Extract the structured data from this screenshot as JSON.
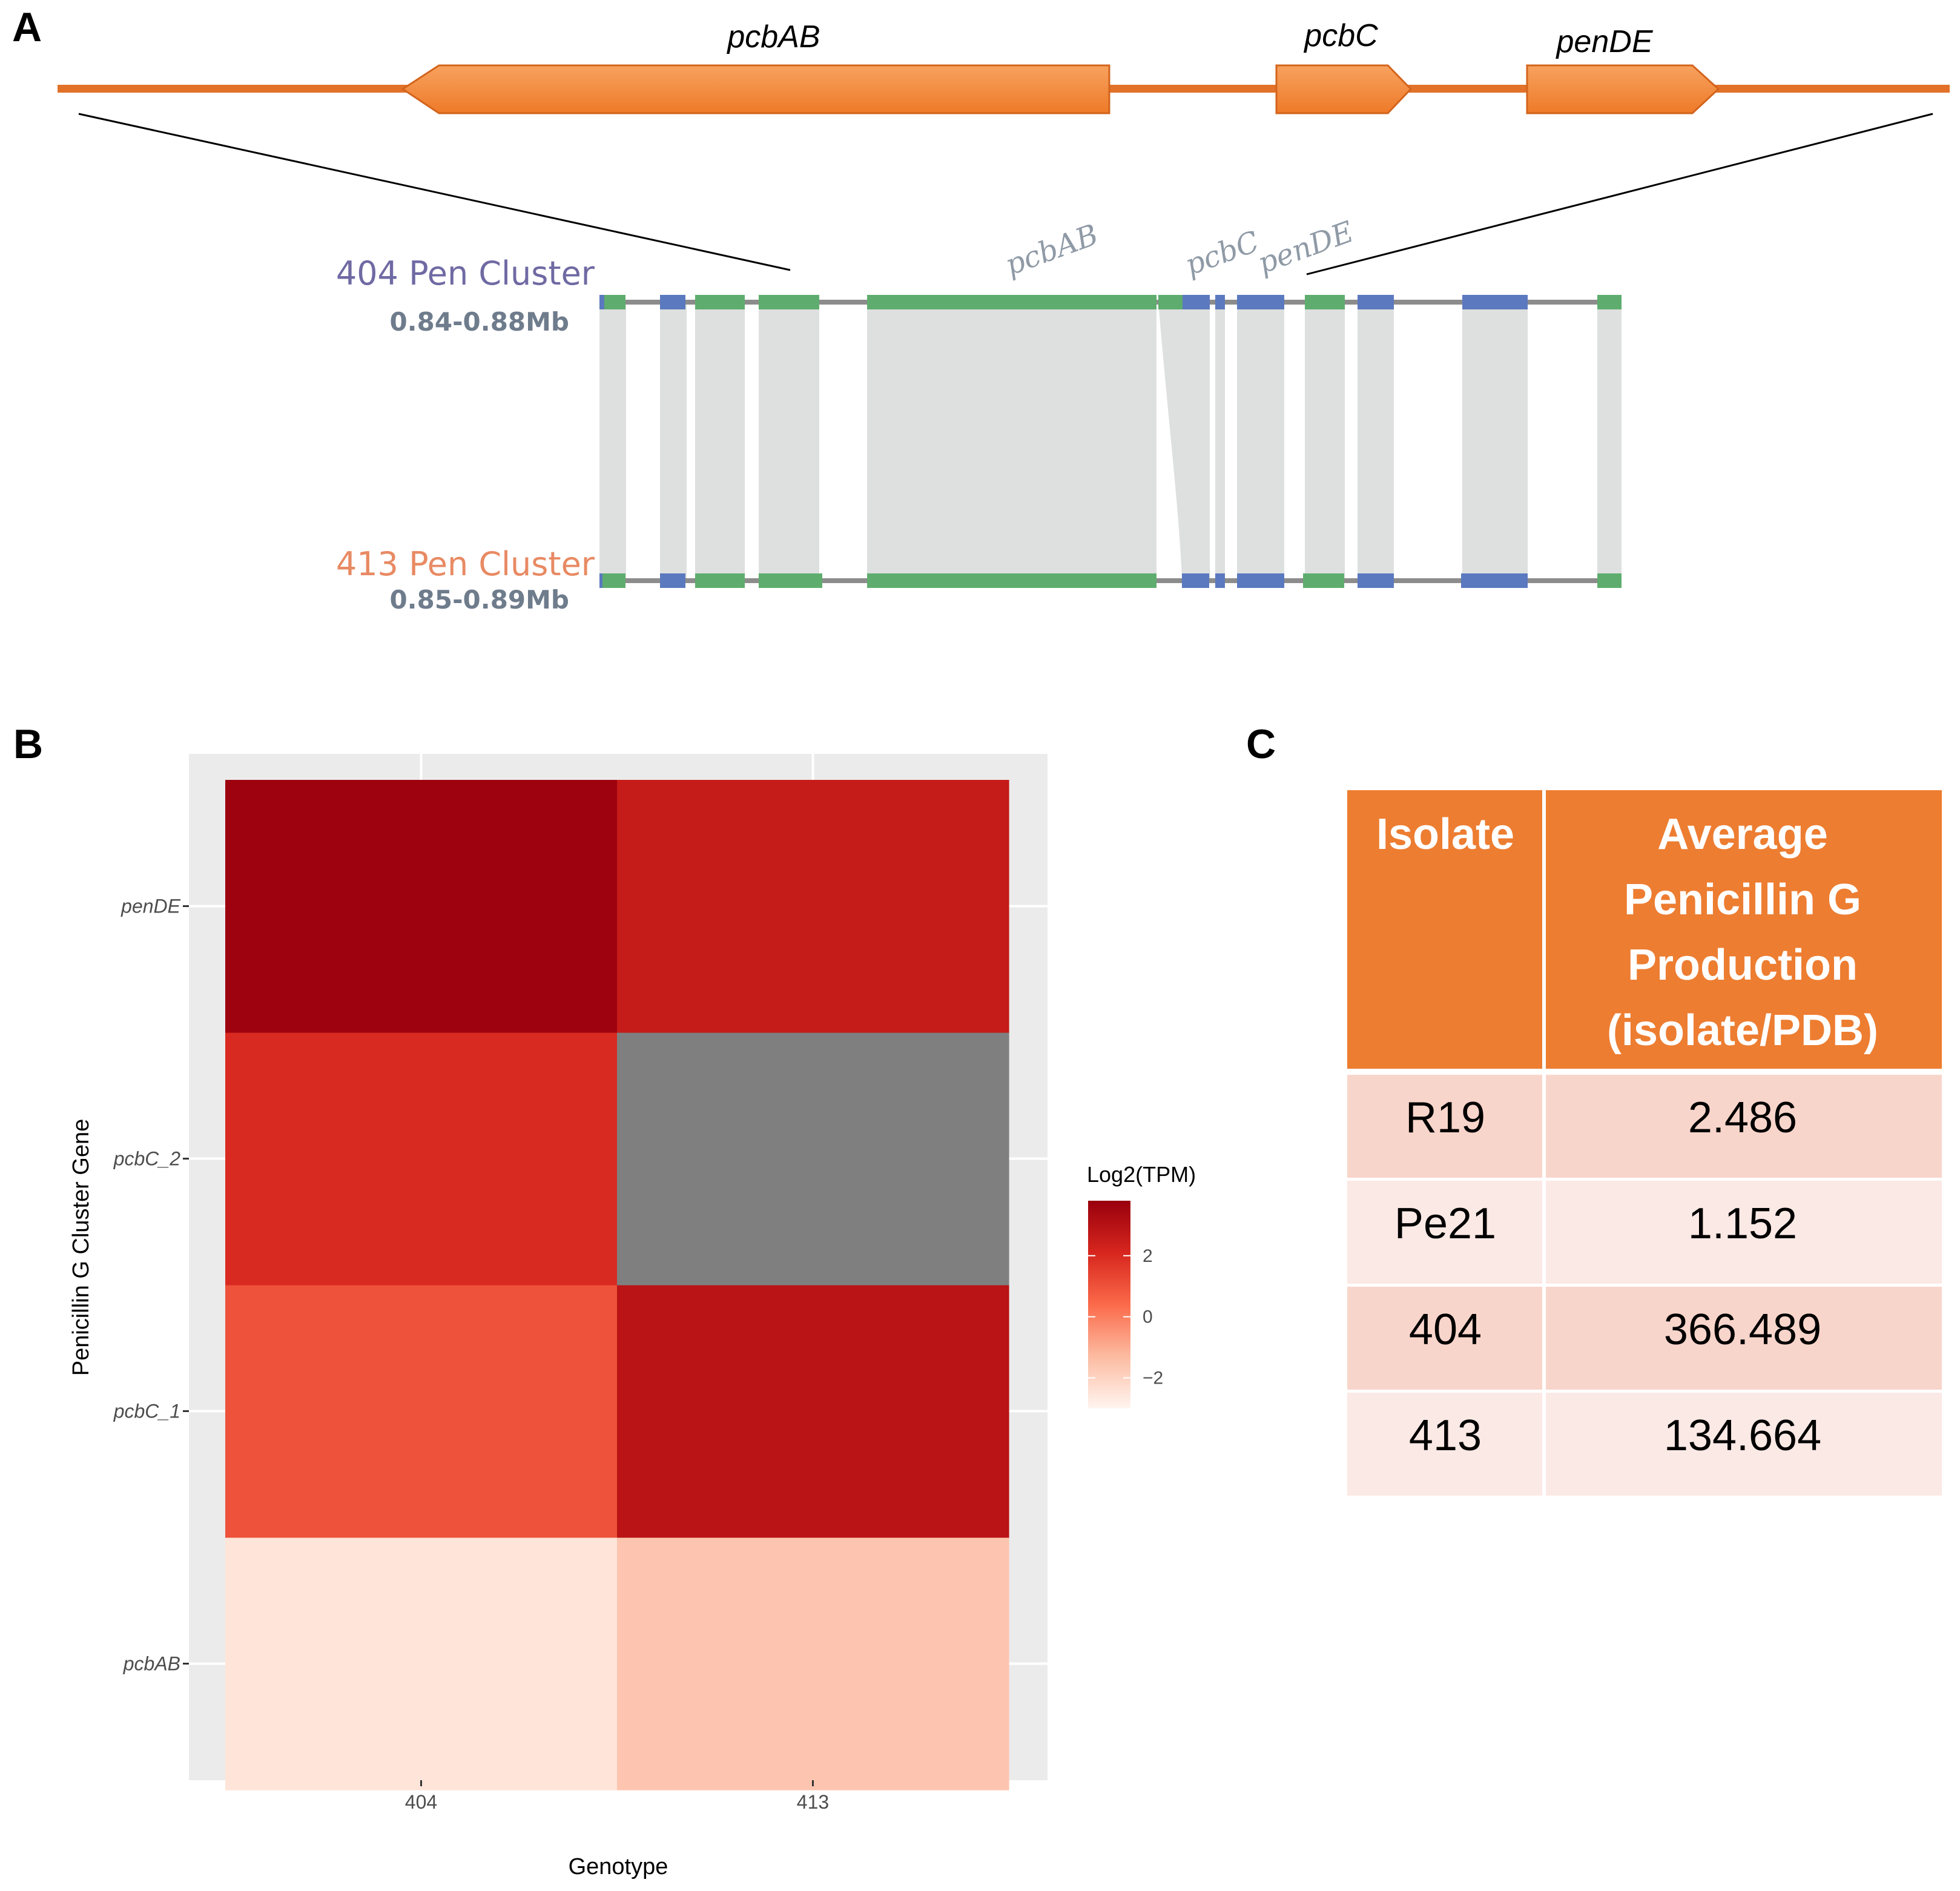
{
  "panels": {
    "a": "A",
    "b": "B",
    "c": "C"
  },
  "gene_map": {
    "genes": [
      {
        "name": "pcbAB",
        "direction": "left"
      },
      {
        "name": "pcbC",
        "direction": "right"
      },
      {
        "name": "penDE",
        "direction": "right"
      }
    ],
    "color": "#f0852d"
  },
  "synteny": {
    "top_cluster": {
      "label": "404 Pen Cluster",
      "range": "0.84-0.88Mb"
    },
    "bottom_cluster": {
      "label": "413 Pen Cluster",
      "range": "0.85-0.89Mb"
    },
    "annotations": [
      "pcbAB",
      "pcbC",
      "penDE"
    ],
    "colors": {
      "green": "#5fad6e",
      "blue": "#5b79bf",
      "link": "#dde0df",
      "backbone": "#8c8c8c"
    }
  },
  "chart_data": {
    "type": "heatmap",
    "x": [
      "404",
      "413"
    ],
    "y": [
      "pcbAB",
      "pcbC_1",
      "pcbC_2",
      "penDE"
    ],
    "values": [
      [
        -2.5,
        -1.6
      ],
      [
        1.0,
        2.9
      ],
      [
        2.0,
        null
      ],
      [
        3.7,
        2.6
      ]
    ],
    "xlabel": "Genotype",
    "ylabel": "Penicillin G Cluster Gene",
    "legend_title": "Log2(TPM)",
    "legend_ticks": [
      "2",
      "0",
      "−2"
    ],
    "legend_range": [
      -3.0,
      3.8
    ],
    "na_color": "#7f7f7f",
    "scale_low": "#fff5f0",
    "scale_high": "#99000d"
  },
  "table": {
    "headers": [
      "Isolate",
      "Average Penicillin G Production (isolate/PDB)"
    ],
    "header_lines": [
      [
        "Isolate"
      ],
      [
        "Average",
        "Penicillin G",
        "Production",
        "(isolate/PDB)"
      ]
    ],
    "rows": [
      [
        "R19",
        "2.486"
      ],
      [
        "Pe21",
        "1.152"
      ],
      [
        "404",
        "366.489"
      ],
      [
        "413",
        "134.664"
      ]
    ],
    "colors": {
      "header": "#ed7d31",
      "row_dark": "#f8d5cb",
      "row_light": "#fbe9e5"
    }
  }
}
